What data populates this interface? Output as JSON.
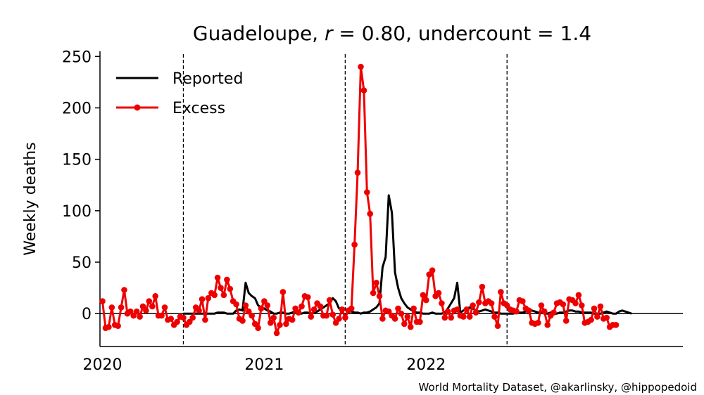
{
  "chart_data": {
    "type": "line",
    "title": "Guadeloupe, r = 0.80, undercount = 1.4",
    "title_parts": {
      "region": "Guadeloupe, ",
      "r_sym": "r",
      "r_val": " = 0.80, undercount = 1.4"
    },
    "xlabel": "",
    "ylabel": "Weekly deaths",
    "x_axis": {
      "unit": "weeks",
      "start": "2019-W27",
      "end": "2022-W47",
      "tick_labels": [
        "2020",
        "2021",
        "2022"
      ],
      "year_boundaries": [
        "2020-07-01",
        "2021-07-01",
        "2022-07-01"
      ]
    },
    "y_axis": {
      "ylim": [
        -32,
        255
      ],
      "ticks": [
        0,
        50,
        100,
        150,
        200,
        250
      ]
    },
    "grid": false,
    "legend_position": "top-left",
    "zero_line": true,
    "series": [
      {
        "name": "Reported",
        "color": "#000000",
        "marker": "none",
        "start_week": "2020-W01",
        "values": [
          0,
          0,
          0,
          0,
          0,
          0,
          0,
          0,
          0,
          0,
          0,
          1,
          1,
          1,
          0,
          0,
          0,
          3,
          4,
          3,
          30,
          20,
          17,
          15,
          8,
          6,
          5,
          3,
          2,
          0,
          0,
          1,
          1,
          0,
          0,
          1,
          2,
          1,
          0,
          1,
          1,
          0,
          1,
          2,
          4,
          6,
          8,
          10,
          15,
          12,
          5,
          4,
          4,
          3,
          2,
          1,
          1,
          0,
          1,
          1,
          2,
          4,
          6,
          10,
          45,
          55,
          115,
          98,
          40,
          25,
          15,
          10,
          6,
          4,
          2,
          1,
          1,
          0,
          0,
          0,
          1,
          0,
          0,
          0,
          1,
          5,
          10,
          15,
          30,
          1,
          3,
          5,
          6,
          5,
          3,
          2,
          3,
          4,
          3,
          2,
          1,
          1,
          0,
          0,
          0,
          0,
          0,
          1,
          1,
          1,
          2,
          3,
          3,
          2,
          1,
          1,
          0,
          0,
          1,
          0,
          0,
          1,
          1,
          2,
          3,
          3,
          2,
          2,
          1,
          1,
          1,
          1,
          0,
          0,
          0,
          1,
          2,
          1,
          0,
          0,
          2,
          3,
          2,
          1,
          0
        ]
      },
      {
        "name": "Excess",
        "color": "#ee0000",
        "marker": "circle",
        "start_week": "2019-W27",
        "values": [
          12,
          -14,
          -13,
          6,
          -11,
          -12,
          6,
          23,
          0,
          2,
          -2,
          2,
          -3,
          7,
          3,
          12,
          7,
          17,
          -2,
          -2,
          6,
          -6,
          -5,
          -11,
          -8,
          -3,
          -4,
          -11,
          -8,
          -4,
          6,
          3,
          14,
          -6,
          15,
          20,
          18,
          35,
          25,
          18,
          33,
          24,
          12,
          9,
          -5,
          -7,
          8,
          2,
          -2,
          -10,
          -14,
          5,
          12,
          8,
          -9,
          -4,
          -19,
          -11,
          21,
          -10,
          -5,
          -6,
          5,
          1,
          7,
          17,
          16,
          -3,
          4,
          10,
          7,
          -2,
          -2,
          13,
          -1,
          -9,
          -5,
          4,
          -4,
          3,
          5,
          67,
          137,
          240,
          217,
          118,
          97,
          20,
          30,
          17,
          -5,
          3,
          2,
          -2,
          -5,
          5,
          0,
          -10,
          -3,
          -13,
          5,
          -8,
          -8,
          18,
          13,
          38,
          42,
          17,
          20,
          10,
          -4,
          2,
          -4,
          3,
          4,
          -2,
          -3,
          4,
          -3,
          8,
          1,
          11,
          26,
          10,
          12,
          10,
          -3,
          -12,
          21,
          10,
          8,
          4,
          3,
          2,
          13,
          12,
          5,
          3,
          -9,
          -10,
          -9,
          8,
          2,
          -11,
          -2,
          1,
          10,
          11,
          9,
          -7,
          14,
          13,
          10,
          18,
          8,
          -9,
          -8,
          -6,
          5,
          -3,
          7,
          -5,
          -4,
          -13,
          -11,
          -11
        ]
      }
    ]
  },
  "credit": "World Mortality Dataset, @akarlinsky, @hippopedoid"
}
